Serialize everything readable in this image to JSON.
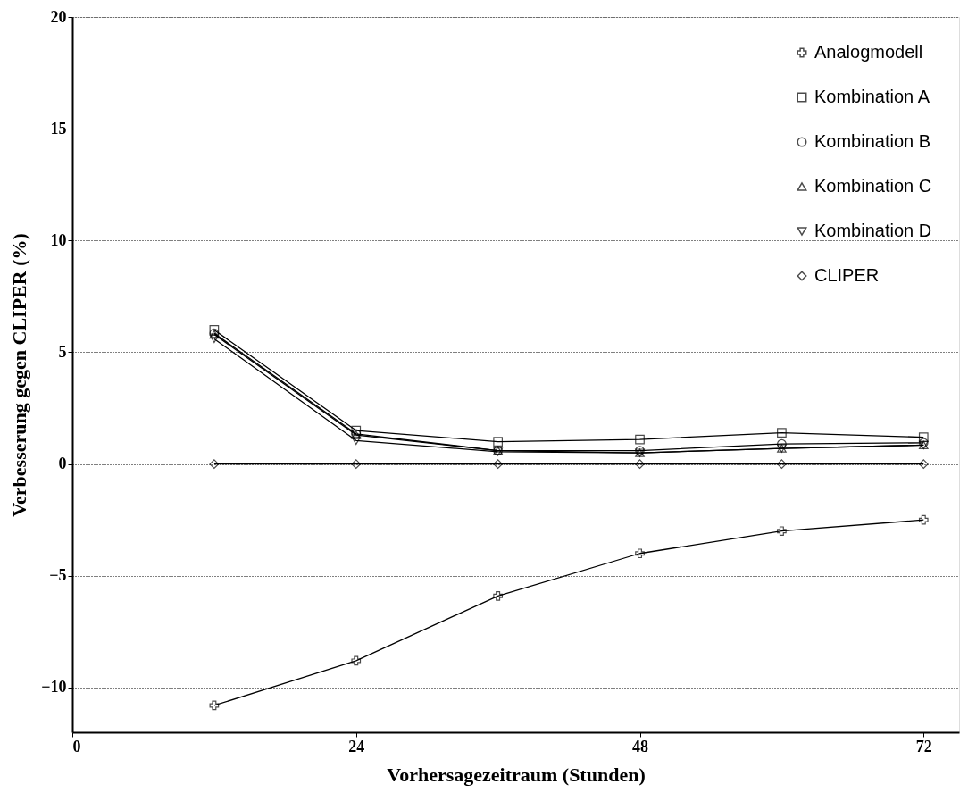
{
  "chart_data": {
    "type": "line",
    "xlabel": "Vorhersagezeitraum (Stunden)",
    "ylabel": "Verbesserung gegen CLIPER (%)",
    "x": [
      12,
      24,
      36,
      48,
      60,
      72
    ],
    "xlim": [
      0,
      75
    ],
    "xticks": [
      0,
      24,
      48,
      72
    ],
    "ylim": [
      -12,
      20
    ],
    "yticks": [
      -10,
      -5,
      0,
      5,
      10,
      15,
      20
    ],
    "grid": "y",
    "legend": "top right",
    "series": [
      {
        "name": "Analogmodell",
        "color": "#000000",
        "marker": "cross",
        "values": [
          -10.8,
          -8.8,
          -5.9,
          -4.0,
          -3.0,
          -2.5
        ]
      },
      {
        "name": "Kombination A",
        "color": "#000000",
        "marker": "square",
        "values": [
          6.0,
          1.5,
          1.0,
          1.1,
          1.4,
          1.2
        ]
      },
      {
        "name": "Kombination B",
        "color": "#000000",
        "marker": "circle",
        "values": [
          5.85,
          1.35,
          0.6,
          0.6,
          0.9,
          0.95
        ]
      },
      {
        "name": "Kombination C",
        "color": "#000000",
        "marker": "triangle",
        "values": [
          5.8,
          1.3,
          0.6,
          0.5,
          0.7,
          0.85
        ]
      },
      {
        "name": "Kombination D",
        "color": "#000000",
        "marker": "triangle-down",
        "values": [
          5.6,
          1.05,
          0.55,
          0.5,
          0.7,
          0.85
        ]
      },
      {
        "name": "CLIPER",
        "color": "#000000",
        "marker": "diamond",
        "values": [
          0,
          0,
          0,
          0,
          0,
          0
        ]
      }
    ]
  }
}
